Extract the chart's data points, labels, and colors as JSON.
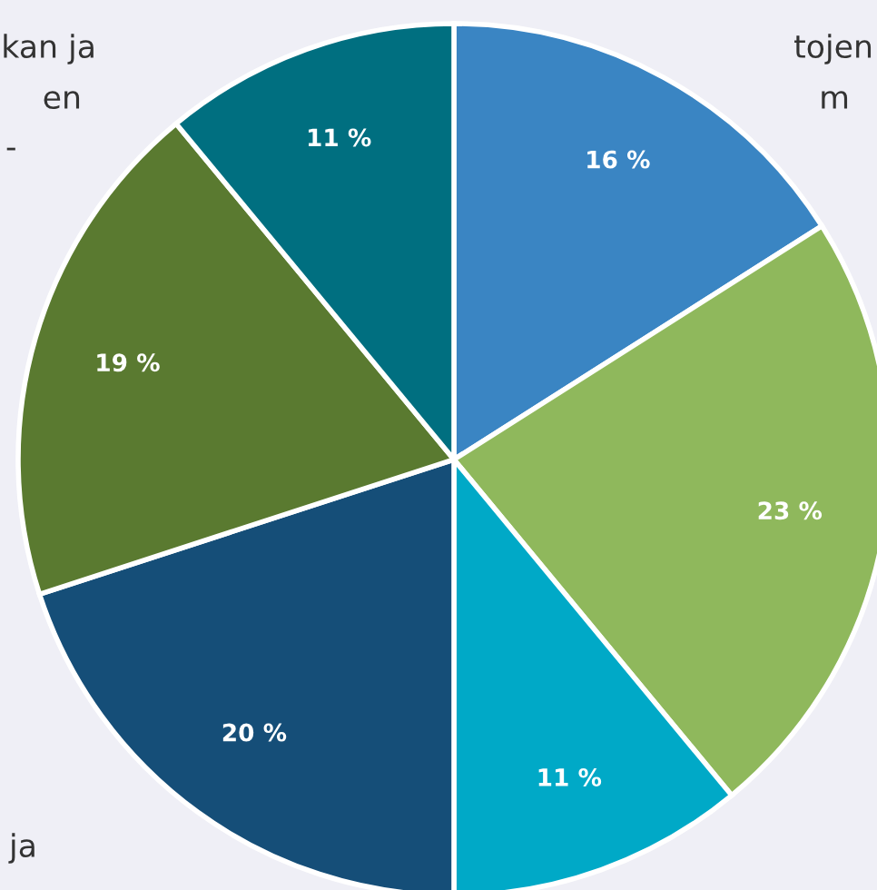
{
  "chart_data": {
    "type": "pie",
    "categories": [
      null,
      null,
      null,
      null,
      null,
      null
    ],
    "values": [
      16,
      23,
      11,
      20,
      19,
      11
    ],
    "value_labels": [
      "16 %",
      "23 %",
      "11 %",
      "20 %",
      "19 %",
      "11 %"
    ],
    "colors": [
      "#3a85c3",
      "#8fb85c",
      "#00a9c7",
      "#154e78",
      "#5a7a30",
      "#006f80"
    ],
    "annotations": [
      "kan ja",
      "en",
      "-",
      "tojen",
      "m",
      "ja"
    ]
  }
}
